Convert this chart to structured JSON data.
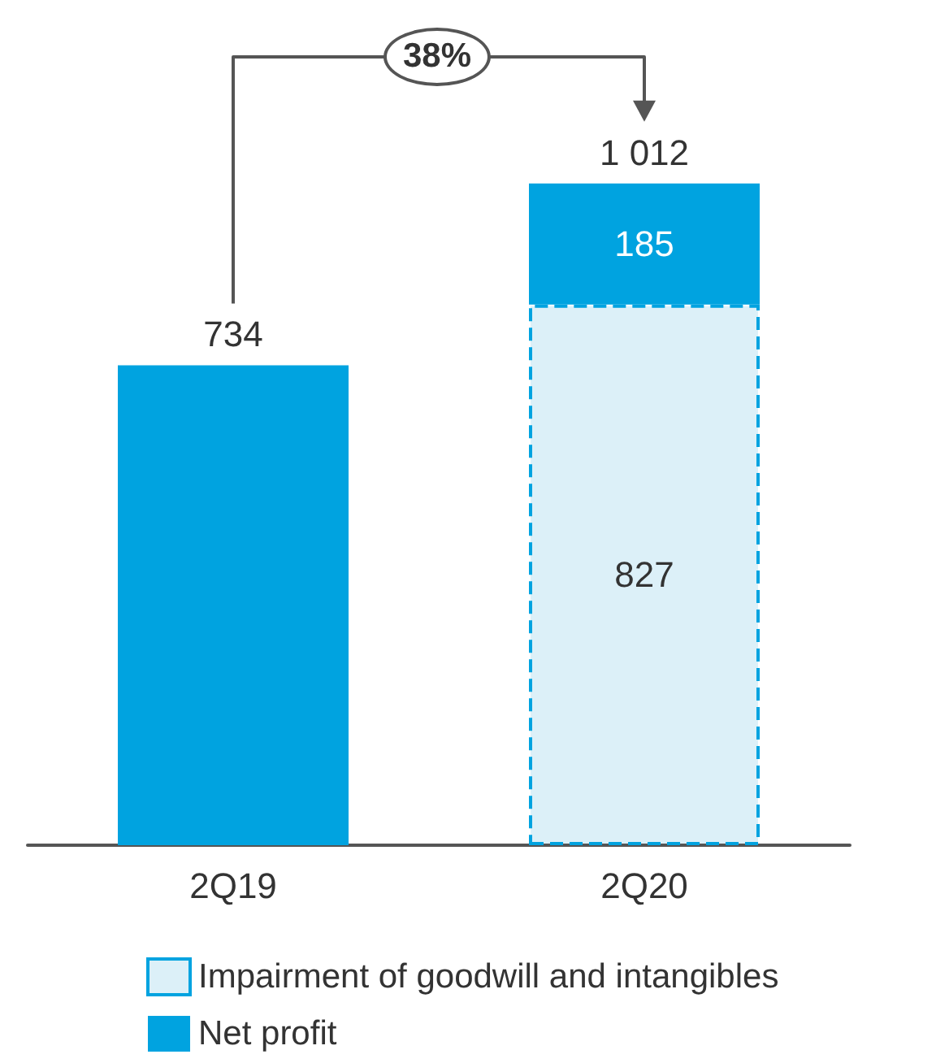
{
  "chart_data": {
    "type": "bar",
    "stacked": true,
    "categories": [
      "2Q19",
      "2Q20"
    ],
    "series": [
      {
        "name": "Impairment of goodwill and intangibles",
        "color": "#dcf0f8",
        "values": [
          null,
          827
        ],
        "value_labels": [
          null,
          "827"
        ]
      },
      {
        "name": "Net profit",
        "color": "#00a3e0",
        "values": [
          734,
          185
        ],
        "value_labels": [
          null,
          "185"
        ]
      }
    ],
    "totals": [
      "734",
      "1 012"
    ],
    "annotations": [
      "38%"
    ],
    "legend": "bottom"
  }
}
